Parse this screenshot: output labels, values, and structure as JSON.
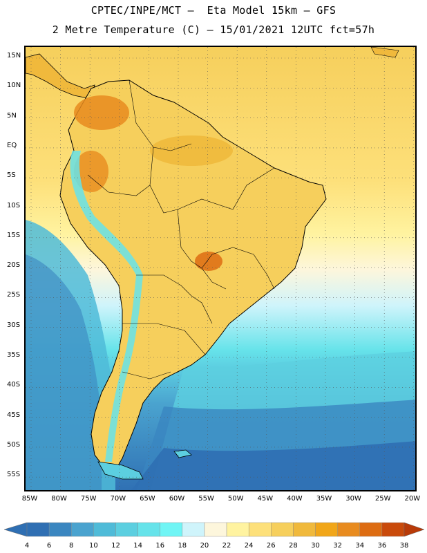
{
  "header": {
    "line1": "CPTEC/INPE/MCT –  Eta Model 15km – GFS",
    "line2": "2 Metre Temperature (C) – 15/01/2021 12UTC fct=57h"
  },
  "map": {
    "variable": "2 Metre Temperature",
    "units": "C",
    "lat_labels": [
      "15N",
      "10N",
      "5N",
      "EQ",
      "5S",
      "10S",
      "15S",
      "20S",
      "25S",
      "30S",
      "35S",
      "40S",
      "45S",
      "50S",
      "55S"
    ],
    "lon_labels": [
      "85W",
      "80W",
      "75W",
      "70W",
      "65W",
      "60W",
      "55W",
      "50W",
      "45W",
      "40W",
      "35W",
      "30W",
      "25W",
      "20W"
    ]
  },
  "colorbar": {
    "labels": [
      "4",
      "6",
      "8",
      "10",
      "12",
      "14",
      "16",
      "18",
      "20",
      "22",
      "24",
      "26",
      "28",
      "30",
      "32",
      "34",
      "36",
      "38"
    ],
    "colors": [
      "#2f6fb3",
      "#3a86c0",
      "#4aa3cf",
      "#4fbbd8",
      "#5ccfe0",
      "#66e3ea",
      "#70f5f5",
      "#cff4fb",
      "#fdf6dc",
      "#fff3a0",
      "#fde07a",
      "#f6cf5c",
      "#f0b93c",
      "#f1a619",
      "#e88b1f",
      "#dd6c12",
      "#c94a0b",
      "#b83a08"
    ]
  }
}
